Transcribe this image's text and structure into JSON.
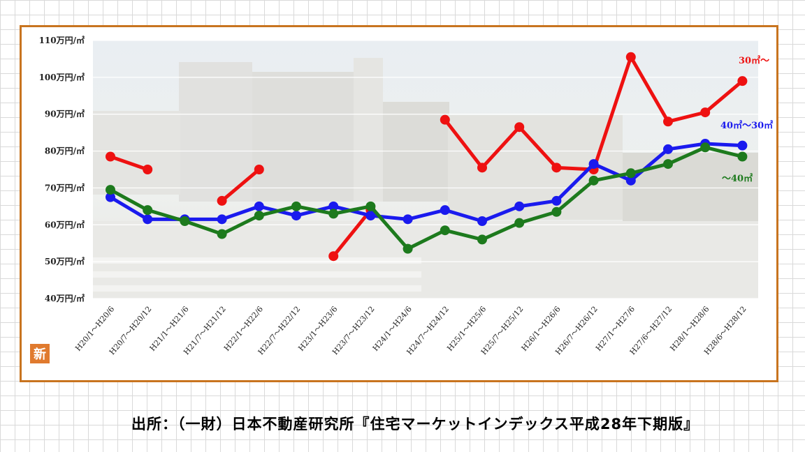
{
  "source_note": "出所：（一財）日本不動産研究所『住宅マーケットインデックス平成28年下期版』",
  "logo_char": "新",
  "chart_data": {
    "type": "line",
    "title": "",
    "xlabel": "",
    "ylabel": "",
    "ylim": [
      40,
      110
    ],
    "yticks": [
      110,
      100,
      90,
      80,
      70,
      60,
      50,
      40
    ],
    "ytick_format": "{v}万円/㎡",
    "grid": true,
    "categories": [
      "H20/1～H20/6",
      "H20/7～H20/12",
      "H21/1～H21/6",
      "H21/7～H21/12",
      "H22/1～H22/6",
      "H22/7～H22/12",
      "H23/1～H23/6",
      "H23/7～H23/12",
      "H24/1～H24/6",
      "H24/7～H24/12",
      "H25/1～H25/6",
      "H25/7～H25/12",
      "H26/1～H26/6",
      "H26/7～H26/12",
      "H27/1～H27/6",
      "H27/6～H27/12",
      "H28/1～H28/6",
      "H28/6～H28/12"
    ],
    "series": [
      {
        "name": "30㎡～",
        "color": "#ee1111",
        "values": [
          78.5,
          75,
          null,
          66.5,
          75,
          null,
          51.5,
          64,
          null,
          88.5,
          75.5,
          86.5,
          75.5,
          75,
          105.5,
          88,
          90.5,
          99
        ]
      },
      {
        "name": "40㎡～30㎡",
        "color": "#1a1aee",
        "values": [
          67.5,
          61.5,
          61.5,
          61.5,
          65,
          62.5,
          65,
          62.5,
          61.5,
          64,
          61,
          65,
          66.5,
          76.5,
          72,
          80.5,
          82,
          81.5
        ]
      },
      {
        "name": "～40㎡",
        "color": "#1d7a1d",
        "values": [
          69.5,
          64,
          61,
          57.5,
          62.5,
          65,
          63,
          65,
          53.5,
          58.5,
          56,
          60.5,
          63.5,
          72,
          74,
          76.5,
          81,
          78.5
        ]
      }
    ]
  }
}
